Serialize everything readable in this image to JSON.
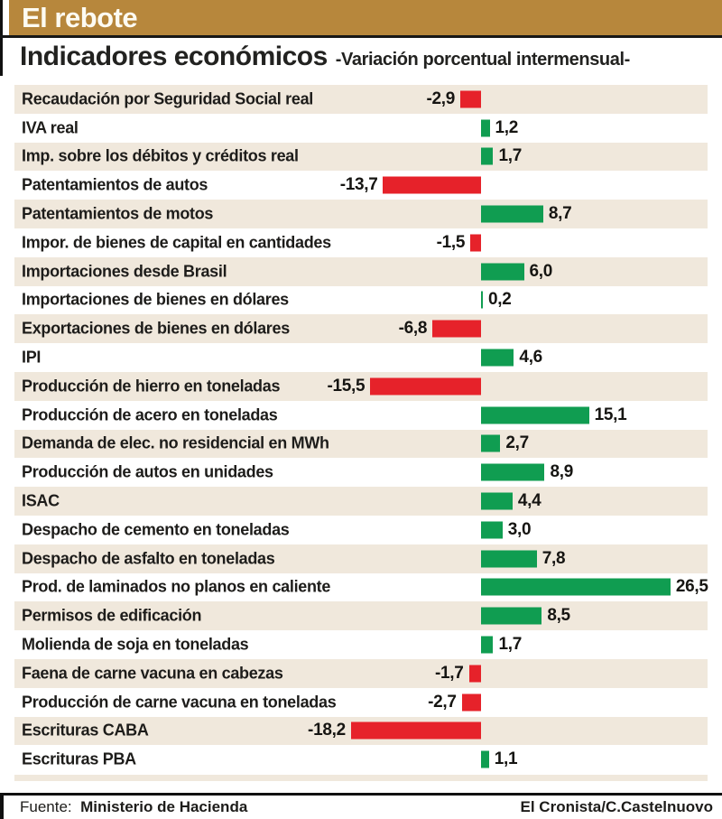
{
  "header": {
    "kicker": "El rebote",
    "title": "Indicadores económicos",
    "subtitle": "-Variación porcentual intermensual-"
  },
  "footer": {
    "source_label": "Fuente:",
    "source_value": "Ministerio de Hacienda",
    "credit": "El Cronista/C.Castelnuovo"
  },
  "colors": {
    "gold": "#b7873c",
    "row_beige": "#f0e8dc",
    "positive_green": "#109d51",
    "negative_red": "#e6222a",
    "text": "#1d1c1a"
  },
  "chart_data": {
    "type": "bar",
    "orientation": "horizontal",
    "title": "Indicadores económicos",
    "subtitle": "Variación porcentual intermensual",
    "unit": "%",
    "xlim": [
      -20,
      30
    ],
    "grid": false,
    "positive_color": "#109d51",
    "negative_color": "#e6222a",
    "categories": [
      "Recaudación por Seguridad Social real",
      "IVA real",
      "Imp. sobre los débitos y créditos real",
      "Patentamientos de autos",
      "Patentamientos de motos",
      "Impor. de bienes de capital en cantidades",
      "Importaciones desde Brasil",
      "Importaciones de bienes en dólares",
      "Exportaciones de bienes en dólares",
      "IPI",
      "Producción de hierro en toneladas",
      "Producción de acero en toneladas",
      "Demanda de elec. no residencial en MWh",
      "Producción de autos en unidades",
      "ISAC",
      "Despacho de cemento en toneladas",
      "Despacho de asfalto en toneladas",
      "Prod. de laminados no planos en caliente",
      "Permisos de edificación",
      "Molienda de soja en toneladas",
      "Faena de carne vacuna en cabezas",
      "Producción de carne vacuna en toneladas",
      "Escrituras CABA",
      "Escrituras PBA"
    ],
    "values": [
      -2.9,
      1.2,
      1.7,
      -13.7,
      8.7,
      -1.5,
      6.0,
      0.2,
      -6.8,
      4.6,
      -15.5,
      15.1,
      2.7,
      8.9,
      4.4,
      3.0,
      7.8,
      26.5,
      8.5,
      1.7,
      -1.7,
      -2.7,
      -18.2,
      1.1
    ],
    "value_labels": [
      "-2,9",
      "1,2",
      "1,7",
      "-13,7",
      "8,7",
      "-1,5",
      "6,0",
      "0,2",
      "-6,8",
      "4,6",
      "-15,5",
      "15,1",
      "2,7",
      "8,9",
      "4,4",
      "3,0",
      "7,8",
      "26,5",
      "8,5",
      "1,7",
      "-1,7",
      "-2,7",
      "-18,2",
      "1,1"
    ]
  }
}
